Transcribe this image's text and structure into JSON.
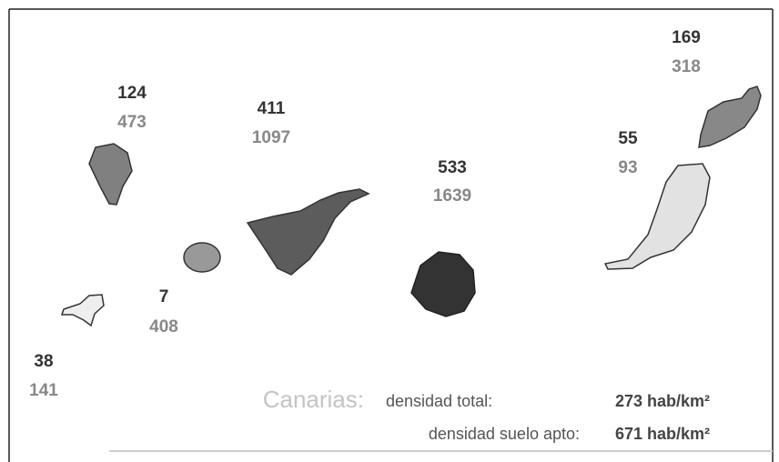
{
  "islands": [
    {
      "density_total": 169,
      "density_suitable": 318
    },
    {
      "density_total": 124,
      "density_suitable": 473
    },
    {
      "density_total": 411,
      "density_suitable": 1097
    },
    {
      "density_total": 55,
      "density_suitable": 93
    },
    {
      "density_total": 533,
      "density_suitable": 1639
    },
    {
      "density_total": 7,
      "density_suitable": 408
    },
    {
      "density_total": 38,
      "density_suitable": 141
    }
  ],
  "summary": {
    "region": "Canarias:",
    "rows": [
      {
        "label": "densidad total:",
        "value": "273 hab/km²"
      },
      {
        "label": "densidad suelo apto:",
        "value": "671 hab/km²"
      }
    ]
  }
}
